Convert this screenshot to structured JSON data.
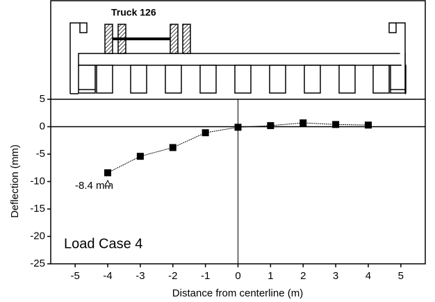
{
  "chart_data": {
    "type": "line",
    "title": "Truck 126",
    "x_label": "Distance from centerline (m)",
    "y_label": "Deflection (mm)",
    "annotations": [
      "-8.4 mm",
      "Load Case 4"
    ],
    "x": [
      -4,
      -3,
      -2,
      -1,
      0,
      1,
      2,
      3,
      4
    ],
    "series": [
      {
        "name": "Load Case 4",
        "color": "#000000",
        "values": [
          -8.4,
          -5.4,
          -3.8,
          -1.1,
          -0.1,
          0.2,
          0.7,
          0.4,
          0.3
        ]
      }
    ],
    "xlim": [
      -5.75,
      5.75
    ],
    "xticks": [
      -5,
      -4,
      -3,
      -2,
      -1,
      0,
      1,
      2,
      3,
      4,
      5
    ],
    "ylim": [
      -25,
      5
    ],
    "yticks": [
      -25,
      -20,
      -15,
      -10,
      -5,
      0,
      5
    ]
  }
}
